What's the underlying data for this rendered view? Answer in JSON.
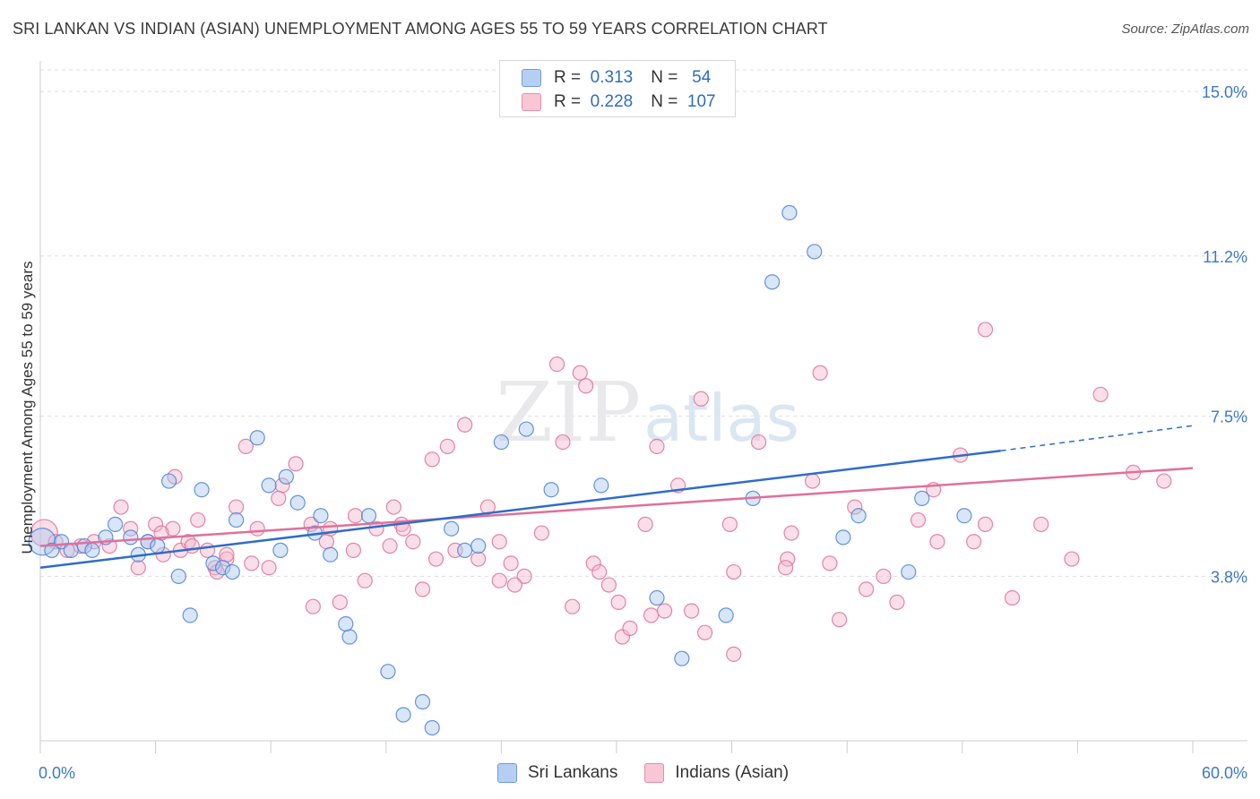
{
  "title": "SRI LANKAN VS INDIAN (ASIAN) UNEMPLOYMENT AMONG AGES 55 TO 59 YEARS CORRELATION CHART",
  "source": "Source: ZipAtlas.com",
  "watermark": {
    "zip": "ZIP",
    "atlas": "atlas"
  },
  "legend": {
    "rows": [
      {
        "r_label": "R =",
        "r_value": "0.313",
        "n_label": "N =",
        "n_value": "54"
      },
      {
        "r_label": "R =",
        "r_value": "0.228",
        "n_label": "N =",
        "n_value": "107"
      }
    ]
  },
  "chart_data": {
    "type": "scatter",
    "title": "SRI LANKAN VS INDIAN (ASIAN) UNEMPLOYMENT AMONG AGES 55 TO 59 YEARS CORRELATION CHART",
    "xlabel": "",
    "ylabel": "Unemployment Among Ages 55 to 59 years",
    "xlim": [
      0,
      60
    ],
    "ylim": [
      0,
      15.5
    ],
    "x_tick_labels": [
      "0.0%",
      "60.0%"
    ],
    "x_ticks": [
      0,
      6,
      12,
      18,
      24,
      30,
      36,
      42,
      48,
      54,
      60
    ],
    "y_ticks": [
      3.8,
      7.5,
      11.2,
      15.0
    ],
    "y_tick_labels": [
      "3.8%",
      "7.5%",
      "11.2%",
      "15.0%"
    ],
    "grid": "horizontal dashed",
    "legend_placement": "bottom-center",
    "colors": {
      "blue": "#4a82d6",
      "blue_fill": "#a9c7ef",
      "pink": "#e0709a",
      "pink_fill": "#f5b9cc",
      "tick": "#3d78c8"
    },
    "series": [
      {
        "name": "Sri Lankans",
        "r": 0.313,
        "n": 54,
        "trend": {
          "x": [
            0,
            50
          ],
          "y": [
            4.0,
            6.7
          ]
        },
        "trend_extension": {
          "x": [
            50,
            60
          ],
          "y": [
            6.7,
            7.28
          ]
        },
        "x": [
          0.1,
          0.6,
          1.1,
          1.6,
          2.3,
          2.7,
          3.4,
          3.9,
          4.7,
          5.6,
          5.1,
          6.1,
          6.7,
          7.2,
          7.8,
          8.4,
          9.0,
          9.5,
          10.0,
          10.2,
          11.3,
          11.9,
          12.5,
          13.4,
          12.8,
          14.3,
          14.6,
          15.1,
          16.1,
          15.9,
          17.1,
          18.1,
          18.9,
          19.9,
          20.4,
          21.4,
          22.1,
          22.8,
          24.0,
          25.3,
          26.6,
          29.2,
          32.1,
          33.4,
          35.7,
          37.1,
          38.1,
          39.0,
          40.3,
          41.8,
          42.6,
          45.2,
          45.9,
          48.1
        ],
        "y": [
          4.6,
          4.4,
          4.6,
          4.4,
          4.5,
          4.4,
          4.7,
          5.0,
          4.7,
          4.6,
          4.3,
          4.5,
          6.0,
          3.8,
          2.9,
          5.8,
          4.1,
          4.0,
          3.9,
          5.1,
          7.0,
          5.9,
          4.4,
          5.5,
          6.1,
          4.8,
          5.2,
          4.3,
          2.4,
          2.7,
          5.2,
          1.6,
          0.6,
          0.9,
          0.3,
          4.9,
          4.4,
          4.5,
          6.9,
          7.2,
          5.8,
          5.9,
          3.3,
          1.9,
          2.9,
          5.6,
          10.6,
          12.2,
          11.3,
          4.7,
          5.2,
          3.9,
          5.6,
          5.2
        ]
      },
      {
        "name": "Indians (Asian)",
        "r": 0.228,
        "n": 107,
        "trend": {
          "x": [
            0,
            60
          ],
          "y": [
            4.5,
            6.3
          ]
        },
        "x": [
          0.2,
          0.8,
          1.4,
          2.1,
          2.8,
          3.6,
          4.2,
          4.7,
          5.1,
          5.6,
          6.0,
          6.4,
          6.9,
          7.3,
          7.7,
          8.2,
          8.7,
          9.1,
          9.7,
          10.2,
          10.7,
          11.3,
          11.9,
          12.6,
          13.3,
          14.1,
          14.9,
          15.6,
          16.3,
          16.9,
          17.5,
          18.2,
          18.8,
          19.4,
          19.9,
          20.4,
          21.2,
          22.1,
          22.8,
          23.3,
          23.9,
          24.5,
          25.2,
          26.1,
          27.2,
          28.1,
          28.8,
          29.6,
          30.3,
          31.5,
          32.1,
          33.2,
          34.6,
          36.1,
          37.4,
          38.9,
          40.2,
          41.1,
          42.4,
          43.0,
          44.6,
          46.5,
          47.9,
          49.2,
          50.6,
          52.1,
          53.7,
          55.2,
          56.9,
          58.5,
          6.3,
          7.9,
          9.7,
          12.4,
          15.1,
          18.4,
          20.6,
          23.9,
          27.7,
          29.1,
          30.7,
          32.5,
          34.4,
          35.9,
          39.1,
          41.6,
          45.7,
          48.6,
          7.0,
          9.2,
          11.0,
          14.2,
          16.4,
          18.9,
          21.6,
          24.7,
          26.9,
          28.4,
          30.1,
          31.8,
          33.9,
          36.1,
          38.8,
          40.6,
          43.9,
          46.7,
          49.2
        ],
        "y": [
          4.8,
          4.6,
          4.4,
          4.5,
          4.6,
          4.5,
          5.4,
          4.9,
          4.0,
          4.6,
          5.0,
          4.3,
          4.9,
          4.4,
          4.6,
          5.1,
          4.4,
          4.0,
          4.2,
          5.4,
          6.8,
          4.9,
          4.0,
          5.9,
          6.4,
          5.0,
          4.6,
          3.2,
          4.4,
          3.7,
          4.9,
          4.5,
          5.0,
          4.6,
          3.5,
          6.5,
          6.8,
          7.3,
          4.2,
          5.4,
          4.6,
          4.1,
          3.8,
          4.8,
          6.9,
          8.5,
          4.1,
          3.6,
          2.4,
          5.0,
          6.8,
          5.9,
          2.5,
          2.0,
          6.9,
          4.2,
          6.0,
          4.1,
          5.4,
          3.5,
          3.2,
          5.8,
          6.6,
          5.0,
          3.3,
          5.0,
          4.2,
          8.0,
          6.2,
          6.0,
          4.8,
          4.5,
          4.3,
          5.6,
          4.9,
          5.4,
          4.2,
          3.7,
          3.1,
          3.9,
          2.6,
          3.0,
          7.9,
          5.0,
          4.8,
          2.8,
          5.1,
          4.6,
          6.1,
          3.9,
          4.1,
          3.1,
          5.2,
          4.9,
          4.4,
          3.6,
          8.7,
          8.2,
          3.2,
          2.9,
          3.0,
          3.9,
          4.0,
          8.5,
          3.8,
          4.6,
          9.5
        ]
      }
    ]
  }
}
